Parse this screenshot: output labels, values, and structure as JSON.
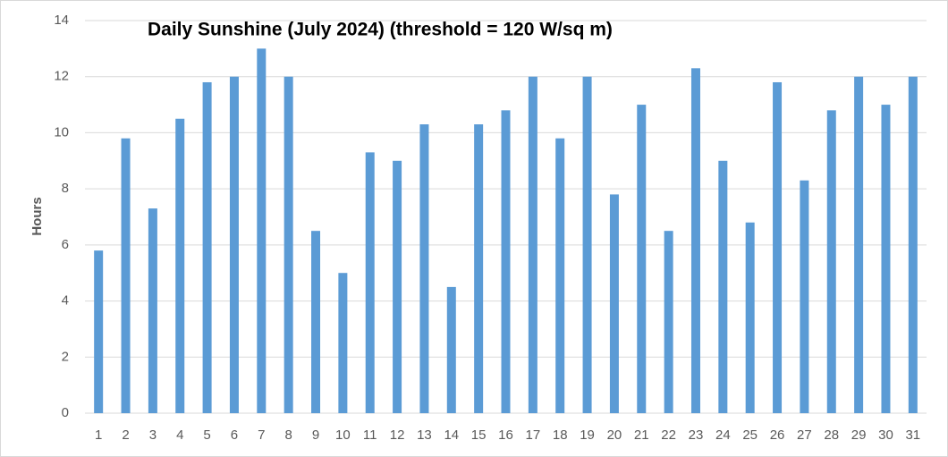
{
  "chart_data": {
    "type": "bar",
    "title": "Daily Sunshine (July 2024) (threshold = 120 W/sq m)",
    "y_label": "Hours",
    "categories": [
      "1",
      "2",
      "3",
      "4",
      "5",
      "6",
      "7",
      "8",
      "9",
      "10",
      "11",
      "12",
      "13",
      "14",
      "15",
      "16",
      "17",
      "18",
      "19",
      "20",
      "21",
      "22",
      "23",
      "24",
      "25",
      "26",
      "27",
      "28",
      "29",
      "30",
      "31"
    ],
    "values": [
      5.8,
      9.8,
      7.3,
      10.5,
      11.8,
      12,
      13,
      12,
      6.5,
      5,
      9.3,
      9,
      10.3,
      4.5,
      10.3,
      10.8,
      12,
      9.8,
      12,
      7.8,
      11,
      6.5,
      12.3,
      9,
      6.8,
      11.8,
      8.3,
      10.8,
      12,
      11,
      12
    ],
    "color": "#5b9bd5",
    "ylim": [
      0,
      14
    ],
    "yticks": [
      0,
      2,
      4,
      6,
      8,
      10,
      12,
      14
    ],
    "grid": true
  }
}
